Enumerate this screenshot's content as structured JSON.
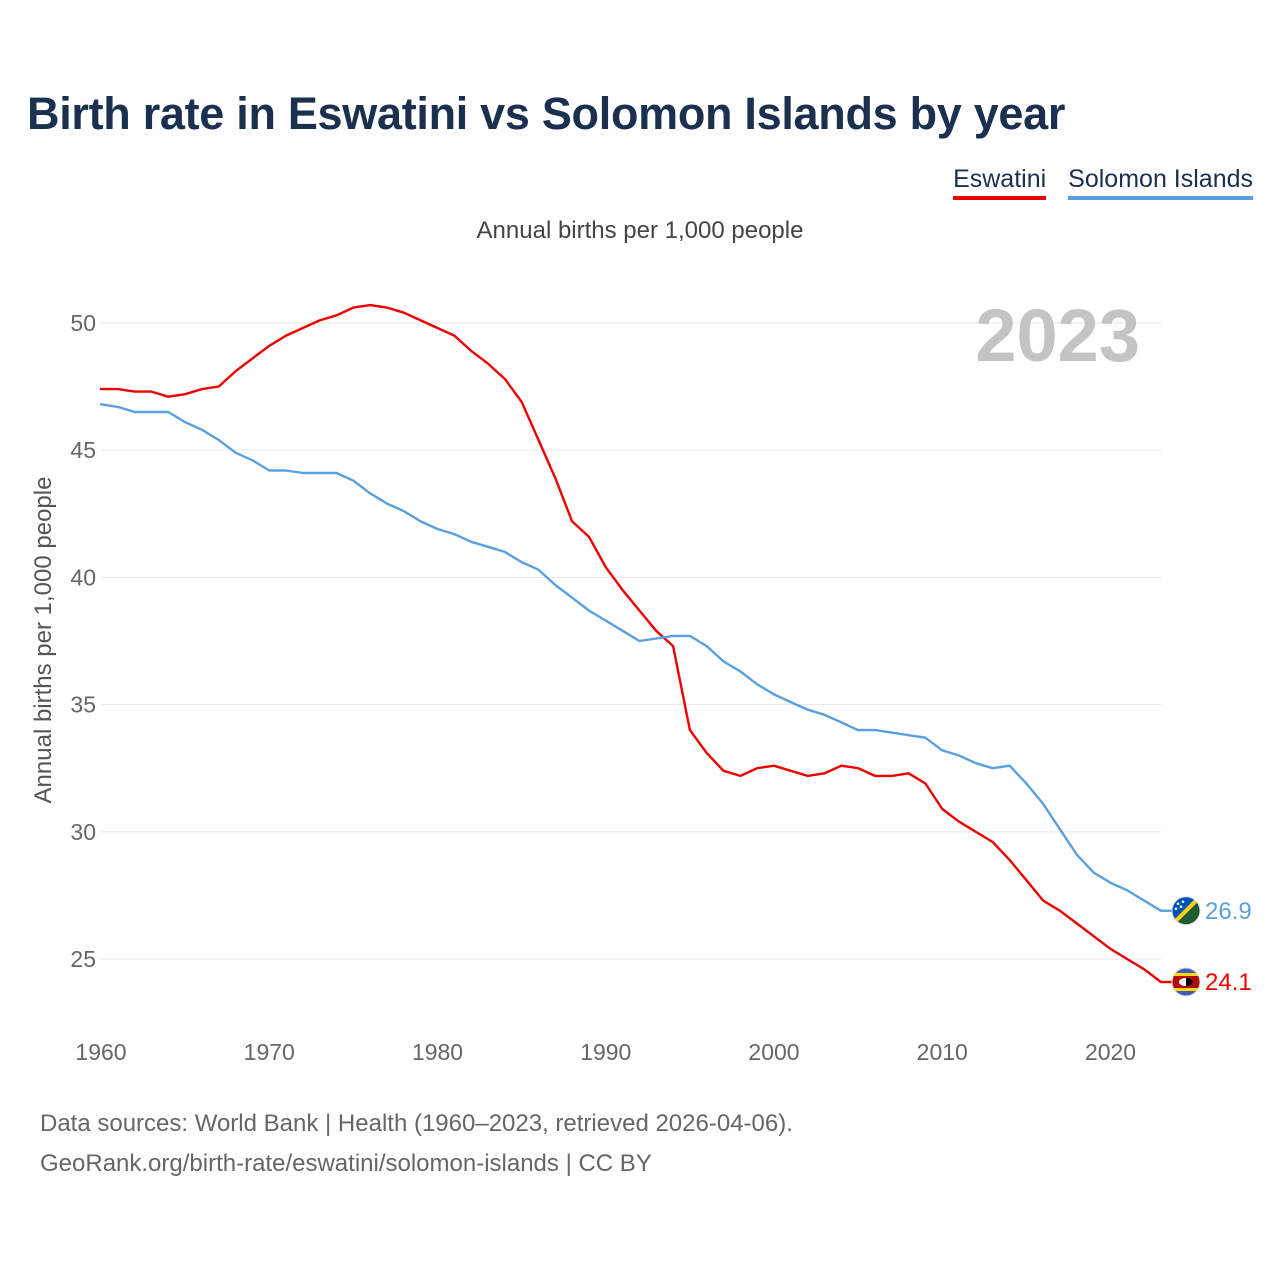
{
  "header": {
    "title": "Birth rate in Eswatini vs Solomon Islands by year",
    "subtitle": "Annual births per 1,000 people"
  },
  "legend": [
    {
      "label": "Eswatini",
      "color": "#ee0000"
    },
    {
      "label": "Solomon Islands",
      "color": "#5aa0e0"
    }
  ],
  "footer": {
    "line1": "Data sources: World Bank | Health (1960–2023, retrieved 2026-04-06).",
    "line2": "GeoRank.org/birth-rate/eswatini/solomon-islands | CC BY"
  },
  "chart_data": {
    "type": "line",
    "title": "Birth rate in Eswatini vs Solomon Islands by year",
    "ylabel": "Annual births per 1,000 people",
    "xlabel": "",
    "year_marker": "2023",
    "xlim": [
      1960,
      2023
    ],
    "ylim": [
      23,
      52
    ],
    "x_ticks": [
      1960,
      1970,
      1980,
      1990,
      2000,
      2010,
      2020
    ],
    "y_ticks": [
      25,
      30,
      35,
      40,
      45,
      50
    ],
    "grid": true,
    "x": [
      1960,
      1961,
      1962,
      1963,
      1964,
      1965,
      1966,
      1967,
      1968,
      1969,
      1970,
      1971,
      1972,
      1973,
      1974,
      1975,
      1976,
      1977,
      1978,
      1979,
      1980,
      1981,
      1982,
      1983,
      1984,
      1985,
      1986,
      1987,
      1988,
      1989,
      1990,
      1991,
      1992,
      1993,
      1994,
      1995,
      1996,
      1997,
      1998,
      1999,
      2000,
      2001,
      2002,
      2003,
      2004,
      2005,
      2006,
      2007,
      2008,
      2009,
      2010,
      2011,
      2012,
      2013,
      2014,
      2015,
      2016,
      2017,
      2018,
      2019,
      2020,
      2021,
      2022,
      2023
    ],
    "series": [
      {
        "name": "Eswatini",
        "color": "#ee0000",
        "end_label": "24.1",
        "values": [
          47.4,
          47.4,
          47.3,
          47.3,
          47.1,
          47.2,
          47.4,
          47.5,
          48.1,
          48.6,
          49.1,
          49.5,
          49.8,
          50.1,
          50.3,
          50.6,
          50.7,
          50.6,
          50.4,
          50.1,
          49.8,
          49.5,
          48.9,
          48.4,
          47.8,
          46.9,
          45.4,
          43.9,
          42.2,
          41.6,
          40.4,
          39.5,
          38.7,
          37.9,
          37.3,
          34.0,
          33.1,
          32.4,
          32.2,
          32.5,
          32.6,
          32.4,
          32.2,
          32.3,
          32.6,
          32.5,
          32.2,
          32.2,
          32.3,
          31.9,
          30.9,
          30.4,
          30.0,
          29.6,
          28.9,
          28.1,
          27.3,
          26.9,
          26.4,
          25.9,
          25.4,
          25.0,
          24.6,
          24.1
        ]
      },
      {
        "name": "Solomon Islands",
        "color": "#5aa0e0",
        "end_label": "26.9",
        "values": [
          46.8,
          46.7,
          46.5,
          46.5,
          46.5,
          46.1,
          45.8,
          45.4,
          44.9,
          44.6,
          44.2,
          44.2,
          44.1,
          44.1,
          44.1,
          43.8,
          43.3,
          42.9,
          42.6,
          42.2,
          41.9,
          41.7,
          41.4,
          41.2,
          41.0,
          40.6,
          40.3,
          39.7,
          39.2,
          38.7,
          38.3,
          37.9,
          37.5,
          37.6,
          37.7,
          37.7,
          37.3,
          36.7,
          36.3,
          35.8,
          35.4,
          35.1,
          34.8,
          34.6,
          34.3,
          34.0,
          34.0,
          33.9,
          33.8,
          33.7,
          33.2,
          33.0,
          32.7,
          32.5,
          32.6,
          31.9,
          31.1,
          30.1,
          29.1,
          28.4,
          28.0,
          27.7,
          27.3,
          26.9
        ]
      }
    ]
  }
}
